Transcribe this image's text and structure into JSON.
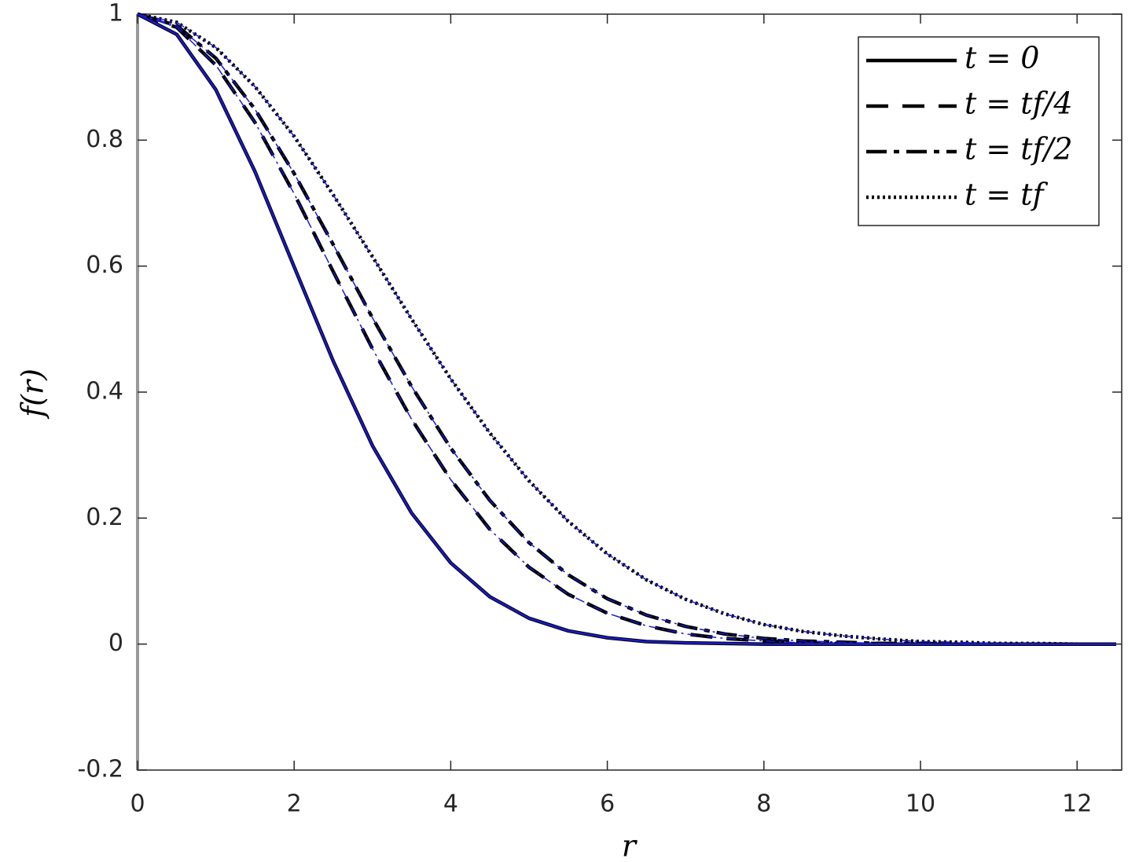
{
  "chart_data": {
    "type": "line",
    "xlabel": "r",
    "ylabel": "f(r)",
    "xlim": [
      0,
      12.57
    ],
    "ylim": [
      -0.2,
      1
    ],
    "xticks": [
      0,
      2,
      4,
      6,
      8,
      10,
      12
    ],
    "yticks": [
      -0.2,
      0,
      0.2,
      0.4,
      0.6,
      0.8,
      1
    ],
    "legend": "upper right",
    "x": [
      0,
      0.5,
      1,
      1.5,
      2,
      2.5,
      3,
      3.5,
      4,
      4.5,
      5,
      5.5,
      6,
      6.5,
      7,
      7.5,
      8,
      8.5,
      9,
      9.5,
      10,
      10.5,
      11,
      11.5,
      12,
      12.5
    ],
    "series": [
      {
        "name": "t = 0",
        "color": "#000000",
        "linestyle": "solid",
        "values": [
          1,
          0.968,
          0.88,
          0.75,
          0.599,
          0.449,
          0.315,
          0.208,
          0.129,
          0.075,
          0.041,
          0.021,
          0.01,
          0.004,
          0.002,
          0.001,
          0,
          0,
          0,
          0,
          0,
          0,
          0,
          0,
          0,
          0
        ]
      },
      {
        "name": "t = tf/4",
        "color": "#000000",
        "linestyle": "dashed",
        "values": [
          1,
          0.979,
          0.919,
          0.828,
          0.715,
          0.591,
          0.469,
          0.357,
          0.261,
          0.182,
          0.122,
          0.079,
          0.049,
          0.029,
          0.016,
          0.009,
          0.005,
          0.002,
          0.001,
          0.001,
          0,
          0,
          0,
          0,
          0,
          0
        ]
      },
      {
        "name": "t = tf/2",
        "color": "#000000",
        "linestyle": "dashdot",
        "values": [
          1,
          0.982,
          0.93,
          0.849,
          0.747,
          0.634,
          0.518,
          0.409,
          0.311,
          0.228,
          0.161,
          0.11,
          0.072,
          0.046,
          0.028,
          0.016,
          0.009,
          0.005,
          0.003,
          0.001,
          0.001,
          0,
          0,
          0,
          0,
          0
        ]
      },
      {
        "name": "t = tf",
        "color": "#000000",
        "linestyle": "dotted",
        "values": [
          1,
          0.987,
          0.947,
          0.885,
          0.806,
          0.713,
          0.615,
          0.516,
          0.421,
          0.335,
          0.259,
          0.195,
          0.143,
          0.102,
          0.071,
          0.048,
          0.031,
          0.02,
          0.013,
          0.008,
          0.004,
          0.003,
          0.001,
          0.001,
          0,
          0
        ]
      },
      {
        "color": "#1a1acc",
        "linestyle": "thinsolid",
        "values": [
          1,
          0.968,
          0.88,
          0.75,
          0.599,
          0.449,
          0.315,
          0.208,
          0.129,
          0.075,
          0.041,
          0.021,
          0.01,
          0.004,
          0.002,
          0.001,
          0,
          0,
          0,
          0,
          0,
          0,
          0,
          0,
          0,
          0
        ]
      },
      {
        "color": "#1a1acc",
        "linestyle": "thindashdot",
        "values": [
          1,
          0.979,
          0.919,
          0.828,
          0.715,
          0.591,
          0.469,
          0.357,
          0.261,
          0.182,
          0.122,
          0.079,
          0.049,
          0.029,
          0.016,
          0.009,
          0.005,
          0.002,
          0.001,
          0.001,
          0,
          0,
          0,
          0,
          0,
          0
        ]
      },
      {
        "color": "#1a1acc",
        "linestyle": "thindashdot",
        "values": [
          1,
          0.982,
          0.93,
          0.849,
          0.747,
          0.634,
          0.518,
          0.409,
          0.311,
          0.228,
          0.161,
          0.11,
          0.072,
          0.046,
          0.028,
          0.016,
          0.009,
          0.005,
          0.003,
          0.001,
          0.001,
          0,
          0,
          0,
          0,
          0
        ]
      },
      {
        "color": "#1a1acc",
        "linestyle": "thindashdot",
        "values": [
          1,
          0.987,
          0.947,
          0.885,
          0.806,
          0.713,
          0.615,
          0.516,
          0.421,
          0.335,
          0.259,
          0.195,
          0.143,
          0.102,
          0.071,
          0.048,
          0.031,
          0.02,
          0.013,
          0.008,
          0.004,
          0.003,
          0.001,
          0.001,
          0,
          0
        ]
      }
    ]
  }
}
